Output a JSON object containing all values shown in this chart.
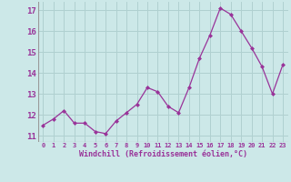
{
  "x": [
    0,
    1,
    2,
    3,
    4,
    5,
    6,
    7,
    8,
    9,
    10,
    11,
    12,
    13,
    14,
    15,
    16,
    17,
    18,
    19,
    20,
    21,
    22,
    23
  ],
  "y": [
    11.5,
    11.8,
    12.2,
    11.6,
    11.6,
    11.2,
    11.1,
    11.7,
    12.1,
    12.5,
    13.3,
    13.1,
    12.4,
    12.1,
    13.3,
    14.7,
    15.8,
    17.1,
    16.8,
    16.0,
    15.2,
    14.3,
    13.0,
    14.4
  ],
  "line_color": "#993399",
  "marker": "D",
  "marker_size": 2,
  "bg_color": "#cce8e8",
  "grid_color": "#b0d0d0",
  "xlabel": "Windchill (Refroidissement éolien,°C)",
  "xlabel_color": "#993399",
  "tick_color": "#993399",
  "ylim": [
    10.7,
    17.4
  ],
  "xlim": [
    -0.5,
    23.5
  ],
  "yticks": [
    11,
    12,
    13,
    14,
    15,
    16,
    17
  ],
  "xticks": [
    0,
    1,
    2,
    3,
    4,
    5,
    6,
    7,
    8,
    9,
    10,
    11,
    12,
    13,
    14,
    15,
    16,
    17,
    18,
    19,
    20,
    21,
    22,
    23
  ]
}
